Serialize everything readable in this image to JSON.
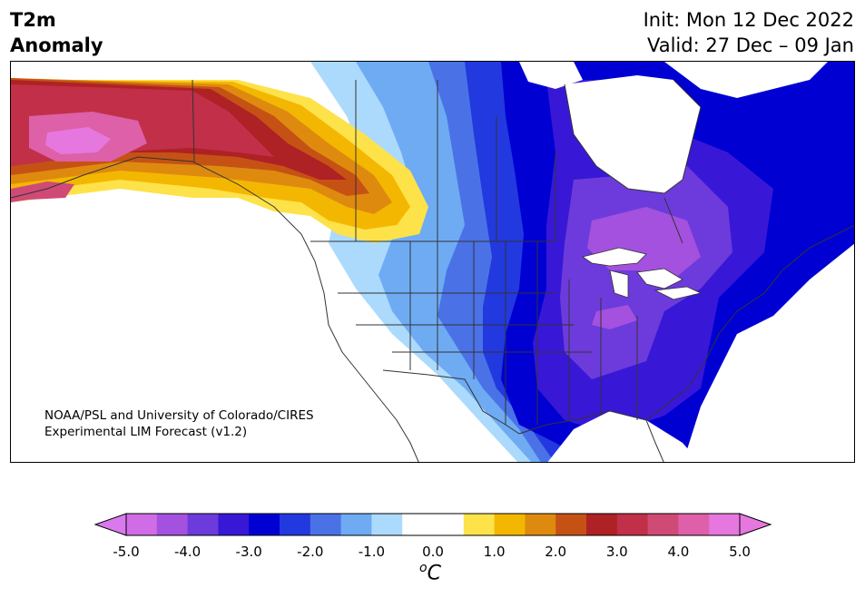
{
  "title": {
    "line1": "T2m",
    "line2": "Anomaly"
  },
  "init": {
    "line1": "Init: Mon 12 Dec 2022",
    "line2": "Valid: 27 Dec – 09 Jan"
  },
  "credit": {
    "line1": "NOAA/PSL and University of Colorado/CIRES",
    "line2": "Experimental LIM Forecast (v1.2)"
  },
  "colorbar": {
    "unit_super": "o",
    "unit_main": "C",
    "ticks": [
      "-5.0",
      "-4.0",
      "-3.0",
      "-2.0",
      "-1.0",
      "0.0",
      "1.0",
      "2.0",
      "3.0",
      "4.0",
      "5.0"
    ],
    "colors": [
      "#cf6ce6",
      "#a351de",
      "#6d3bdc",
      "#3818d6",
      "#0000d3",
      "#2239df",
      "#4a72e6",
      "#6fabf3",
      "#abdafd",
      "#ffffff",
      "#ffffff",
      "#fde24a",
      "#f4b701",
      "#de8a0f",
      "#c55214",
      "#ae2125",
      "#c22f48",
      "#d04a76",
      "#dd60a8",
      "#e677de"
    ],
    "under_color": "#d87aed",
    "over_color": "#e677de"
  },
  "map_colors": {
    "ocean": "#ffffff",
    "alaska_core": "#e677de",
    "alaska": "#c22f48",
    "alaska_edge": "#d04a76",
    "canada_red": "#ae2125",
    "canada_orange": "#de8a0f",
    "canada_gold": "#f4b701",
    "canada_yellow": "#fde24a",
    "west_light": "#abdafd",
    "west_mid": "#6fabf3",
    "plains_blue": "#4a72e6",
    "plains_deep": "#2239df",
    "core_blue": "#0000d3",
    "east_indigo": "#3818d6",
    "east_violet": "#6d3bdc",
    "lakes_purple": "#a351de",
    "borders": "#333333"
  }
}
